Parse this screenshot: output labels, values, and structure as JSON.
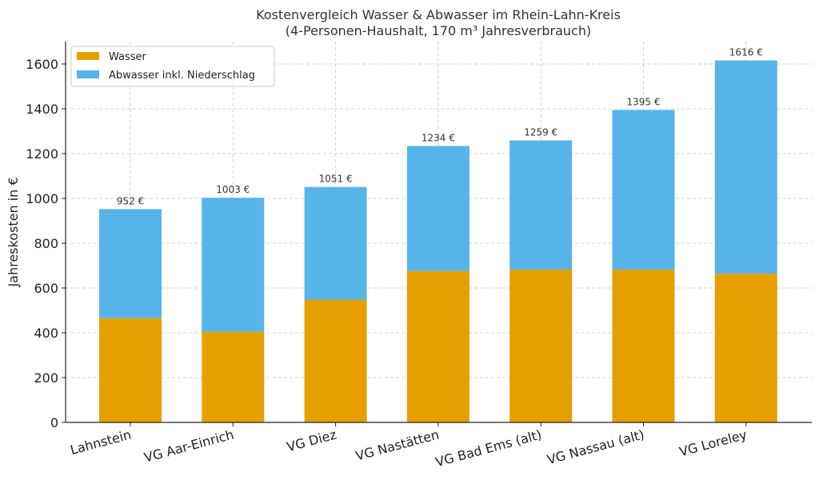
{
  "chart_data": {
    "type": "bar",
    "stacked": true,
    "title": "Kostenvergleich Wasser & Abwasser im Rhein-Lahn-Kreis",
    "subtitle": "(4-Personen-Haushalt, 170 m³ Jahresverbrauch)",
    "xlabel": "",
    "ylabel": "Jahreskosten in €",
    "ylim": [
      0,
      1700
    ],
    "yticks": [
      0,
      200,
      400,
      600,
      800,
      1000,
      1200,
      1400,
      1600
    ],
    "grid": true,
    "legend_position": "top-left",
    "categories": [
      "Lahnstein",
      "VG Aar-Einrich",
      "VG Diez",
      "VG Nastätten",
      "VG Bad Ems (alt)",
      "VG Nassau (alt)",
      "VG Loreley"
    ],
    "series": [
      {
        "name": "Wasser",
        "color": "#E69F00",
        "values": [
          465,
          405,
          548,
          676,
          682,
          682,
          664
        ]
      },
      {
        "name": "Abwasser inkl. Niederschlag",
        "color": "#56B4E9",
        "values": [
          487,
          598,
          503,
          558,
          577,
          713,
          952
        ]
      }
    ],
    "totals": [
      952,
      1003,
      1051,
      1234,
      1259,
      1395,
      1616
    ],
    "total_labels": [
      "952 €",
      "1003 €",
      "1051 €",
      "1234 €",
      "1259 €",
      "1395 €",
      "1616 €"
    ]
  }
}
